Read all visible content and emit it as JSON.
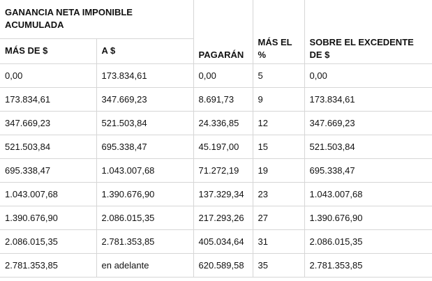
{
  "table": {
    "headers": {
      "group": "GANANCIA NETA IMPONIBLE ACUMULADA",
      "from": "MÁS DE $",
      "to": "A $",
      "pay": "PAGARÁN",
      "rate": "MÁS EL %",
      "excess": "SOBRE EL EXCEDENTE DE $"
    },
    "rows": [
      {
        "from": "0,00",
        "to": "173.834,61",
        "pay": "0,00",
        "rate": "5",
        "excess": "0,00"
      },
      {
        "from": "173.834,61",
        "to": "347.669,23",
        "pay": "8.691,73",
        "rate": "9",
        "excess": "173.834,61"
      },
      {
        "from": "347.669,23",
        "to": "521.503,84",
        "pay": "24.336,85",
        "rate": "12",
        "excess": "347.669,23"
      },
      {
        "from": "521.503,84",
        "to": "695.338,47",
        "pay": "45.197,00",
        "rate": "15",
        "excess": "521.503,84"
      },
      {
        "from": "695.338,47",
        "to": "1.043.007,68",
        "pay": "71.272,19",
        "rate": "19",
        "excess": "695.338,47"
      },
      {
        "from": "1.043.007,68",
        "to": "1.390.676,90",
        "pay": "137.329,34",
        "rate": "23",
        "excess": "1.043.007,68"
      },
      {
        "from": "1.390.676,90",
        "to": "2.086.015,35",
        "pay": "217.293,26",
        "rate": "27",
        "excess": "1.390.676,90"
      },
      {
        "from": "2.086.015,35",
        "to": "2.781.353,85",
        "pay": "405.034,64",
        "rate": "31",
        "excess": "2.086.015,35"
      },
      {
        "from": "2.781.353,85",
        "to": "en adelante",
        "pay": "620.589,58",
        "rate": "35",
        "excess": "2.781.353,85"
      }
    ]
  }
}
